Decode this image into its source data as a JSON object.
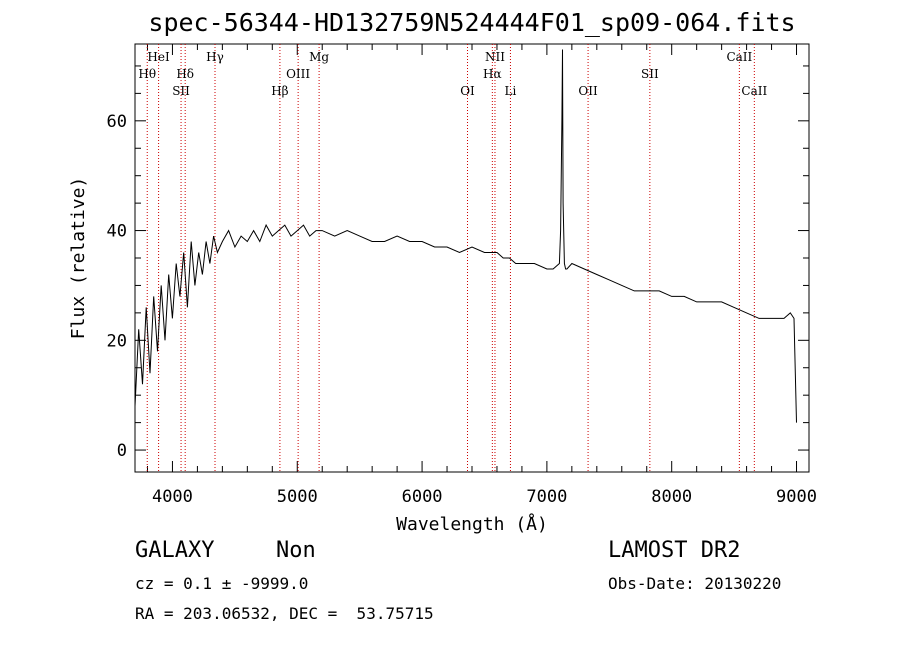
{
  "title": "spec-56344-HD132759N524444F01_sp09-064.fits",
  "info": {
    "class_label": "GALAXY",
    "subclass_label": "Non",
    "survey": "LAMOST DR2",
    "cz": "cz = 0.1 ± -9999.0",
    "obs_date": "Obs-Date: 20130220",
    "coords": "RA = 203.06532, DEC =  53.75715"
  },
  "colors": {
    "spectrum": "#000000",
    "line_marker": "#cc0000",
    "axes": "#000000"
  },
  "chart_data": {
    "type": "line",
    "xlabel": "Wavelength (Å)",
    "ylabel": "Flux (relative)",
    "xlim": [
      3700,
      9100
    ],
    "ylim": [
      -4,
      74
    ],
    "x_ticks": [
      4000,
      5000,
      6000,
      7000,
      8000,
      9000
    ],
    "y_ticks": [
      0,
      20,
      40,
      60
    ],
    "series": [
      {
        "x": [
          3700,
          3730,
          3760,
          3790,
          3820,
          3850,
          3880,
          3910,
          3940,
          3970,
          4000,
          4030,
          4060,
          4090,
          4120,
          4150,
          4180,
          4210,
          4240,
          4270,
          4300,
          4330,
          4360,
          4400,
          4450,
          4500,
          4550,
          4600,
          4650,
          4700,
          4750,
          4800,
          4850,
          4900,
          4950,
          5000,
          5050,
          5100,
          5150,
          5200,
          5300,
          5400,
          5500,
          5600,
          5700,
          5800,
          5900,
          6000,
          6100,
          6200,
          6300,
          6400,
          6500,
          6560,
          6600,
          6650,
          6700,
          6750,
          6800,
          6900,
          7000,
          7050,
          7100,
          7110,
          7120,
          7125,
          7130,
          7140,
          7150,
          7160,
          7200,
          7300,
          7400,
          7500,
          7600,
          7700,
          7800,
          7900,
          8000,
          8100,
          8200,
          8300,
          8400,
          8500,
          8600,
          8700,
          8800,
          8900,
          8950,
          8980,
          9000
        ],
        "y": [
          8,
          22,
          12,
          26,
          14,
          28,
          18,
          30,
          20,
          32,
          24,
          34,
          28,
          36,
          26,
          38,
          30,
          36,
          32,
          38,
          34,
          39,
          36,
          38,
          40,
          37,
          39,
          38,
          40,
          38,
          41,
          39,
          40,
          41,
          39,
          40,
          41,
          39,
          40,
          40,
          39,
          40,
          39,
          38,
          38,
          39,
          38,
          38,
          37,
          37,
          36,
          37,
          36,
          36,
          36,
          35,
          35,
          34,
          34,
          34,
          33,
          33,
          34,
          40,
          60,
          73,
          45,
          34,
          33,
          33,
          34,
          33,
          32,
          31,
          30,
          29,
          29,
          29,
          28,
          28,
          27,
          27,
          27,
          26,
          25,
          24,
          24,
          24,
          25,
          24,
          5
        ]
      }
    ],
    "line_markers": [
      {
        "label": "Hθ",
        "wavelength": 3798,
        "row": 2
      },
      {
        "label": "HeI",
        "wavelength": 3889,
        "row": 1
      },
      {
        "label": "Hδ",
        "wavelength": 4102,
        "row": 2
      },
      {
        "label": "SII",
        "wavelength": 4069,
        "row": 3
      },
      {
        "label": "Hγ",
        "wavelength": 4341,
        "row": 1
      },
      {
        "label": "Hβ",
        "wavelength": 4861,
        "row": 3
      },
      {
        "label": "OIII",
        "wavelength": 5007,
        "row": 2
      },
      {
        "label": "Mg",
        "wavelength": 5175,
        "row": 1
      },
      {
        "label": "OI",
        "wavelength": 6364,
        "row": 3
      },
      {
        "label": "NII",
        "wavelength": 6584,
        "row": 1
      },
      {
        "label": "Hα",
        "wavelength": 6563,
        "row": 2
      },
      {
        "label": "Li",
        "wavelength": 6708,
        "row": 3
      },
      {
        "label": "OII",
        "wavelength": 7330,
        "row": 3
      },
      {
        "label": "SII",
        "wavelength": 7825,
        "row": 2
      },
      {
        "label": "CaII",
        "wavelength": 8542,
        "row": 1
      },
      {
        "label": "CaII",
        "wavelength": 8662,
        "row": 3
      }
    ]
  }
}
